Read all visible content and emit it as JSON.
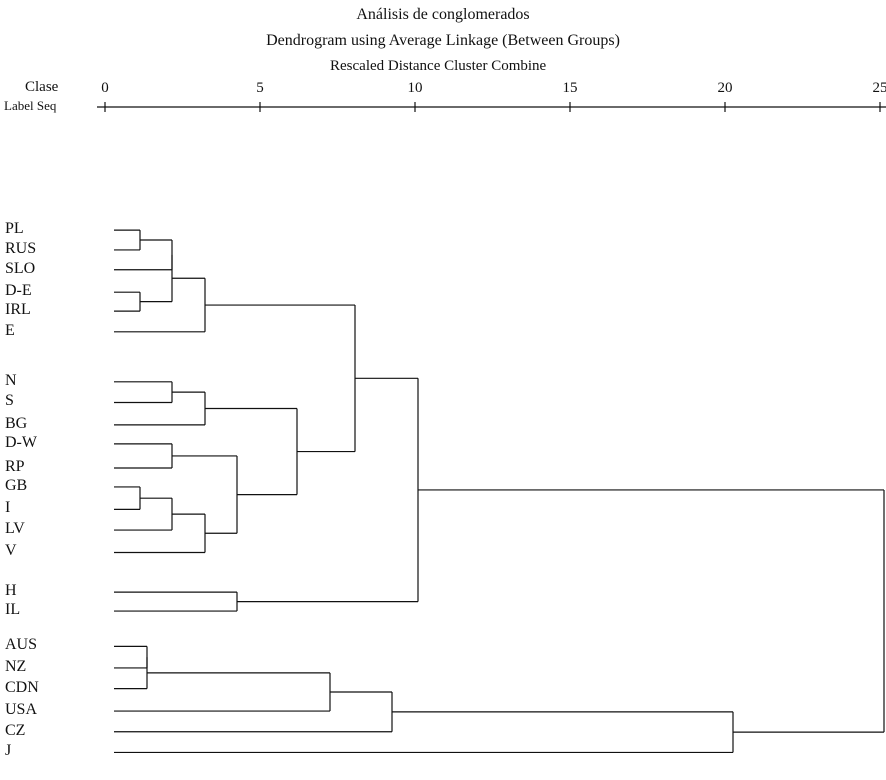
{
  "header": {
    "title": "Análisis de conglomerados",
    "subtitle": "Dendrogram using Average Linkage (Between Groups)",
    "axis_title": "Rescaled Distance Cluster Combine",
    "col_label_1": "Clase",
    "col_label_2": "Label Seq"
  },
  "chart_data": {
    "type": "dendrogram",
    "linkage": "average",
    "axis": {
      "min": 0,
      "max": 25,
      "ticks": [
        "0",
        "5",
        "10",
        "15",
        "20",
        "25"
      ]
    },
    "leaves": [
      "PL",
      "RUS",
      "SLO",
      "D-E",
      "IRL",
      "E",
      "N",
      "S",
      "BG",
      "D-W",
      "RP",
      "GB",
      "I",
      "LV",
      "V",
      "H",
      "IL",
      "AUS",
      "NZ",
      "CDN",
      "USA",
      "CZ",
      "J"
    ],
    "merges": [
      {
        "a": "PL",
        "b": "RUS",
        "distance": 1.0
      },
      {
        "a": "D-E",
        "b": "IRL",
        "distance": 1.0
      },
      {
        "a": "GB",
        "b": "I",
        "distance": 1.0
      },
      {
        "a": "AUS",
        "b": "NZ",
        "distance": 1.0
      },
      {
        "a": "PL+RUS",
        "b": "SLO",
        "distance": 2.0
      },
      {
        "a": "PL+RUS+SLO",
        "b": "D-E+IRL",
        "distance": 2.0
      },
      {
        "a": "N",
        "b": "S",
        "distance": 2.0
      },
      {
        "a": "D-W",
        "b": "RP",
        "distance": 2.0
      },
      {
        "a": "GB+I",
        "b": "LV",
        "distance": 2.0
      },
      {
        "a": "AUS+NZ",
        "b": "CDN",
        "distance": 1.0
      },
      {
        "a": "PL..IRL",
        "b": "E",
        "distance": 3.0
      },
      {
        "a": "N+S",
        "b": "BG",
        "distance": 3.0
      },
      {
        "a": "GB+I+LV",
        "b": "V",
        "distance": 3.0
      },
      {
        "a": "D-W+RP",
        "b": "GB+I+LV+V",
        "distance": 4.0
      },
      {
        "a": "H",
        "b": "IL",
        "distance": 4.0
      },
      {
        "a": "N+S+BG",
        "b": "D-W..V",
        "distance": 6.0
      },
      {
        "a": "PL..E",
        "b": "N..V",
        "distance": 8.0
      },
      {
        "a": "PL..V",
        "b": "H+IL",
        "distance": 10.0
      },
      {
        "a": "AUS+NZ+CDN",
        "b": "USA",
        "distance": 7.0
      },
      {
        "a": "AUS..USA",
        "b": "CZ",
        "distance": 9.0
      },
      {
        "a": "AUS..CZ",
        "b": "J",
        "distance": 20.0
      },
      {
        "a": "PL..IL",
        "b": "AUS..J",
        "distance": 25.0
      }
    ]
  }
}
